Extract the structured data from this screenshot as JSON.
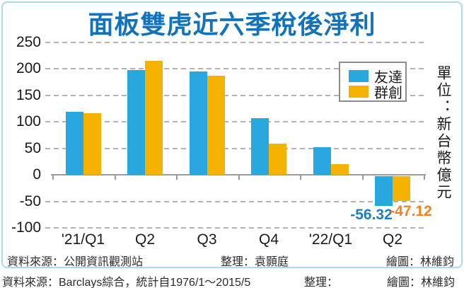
{
  "title": "面板雙虎近六季稅後淨利",
  "unit_label": "單位：新台幣億元",
  "captions": {
    "source": "資料來源：公開資訊觀測站",
    "editor": "整理：袁顥庭",
    "illustrator": "繪圖：林維鈞"
  },
  "footer": {
    "source": "資料來源：Barclays綜合，統計自1976/1～2015/5",
    "editor": "整理：",
    "illustrator": "繪圖：林維鈞"
  },
  "chart_data": {
    "type": "bar",
    "title": "面板雙虎近六季稅後淨利",
    "unit": "新台幣億元",
    "categories": [
      "'21/Q1",
      "Q2",
      "Q3",
      "Q4",
      "'22/Q1",
      "Q2"
    ],
    "series": [
      {
        "name": "友達",
        "color": "#29a8e0",
        "values": [
          119,
          197,
          195,
          107,
          52,
          -56.32
        ]
      },
      {
        "name": "群創",
        "color": "#f5b200",
        "values": [
          116,
          215,
          187,
          59,
          20,
          -47.12
        ]
      }
    ],
    "ylim": [
      -100,
      250
    ],
    "ytick_step": 50,
    "yticks": [
      250,
      200,
      150,
      100,
      50,
      0,
      -50,
      -100
    ],
    "grid": "horizontal-dashed",
    "legend_position": "top-right-inside",
    "annotations": [
      {
        "series": "友達",
        "category": "Q2",
        "text": "-56.32",
        "color": "#1b7ec2"
      },
      {
        "series": "群創",
        "category": "Q2",
        "text": "-47.12",
        "color": "#f58220"
      }
    ]
  },
  "colors": {
    "title_blue": "#1273bd",
    "card_border": "#a9d8f0",
    "gridline": "#b3b3b3",
    "axis": "#9b9b9b"
  }
}
